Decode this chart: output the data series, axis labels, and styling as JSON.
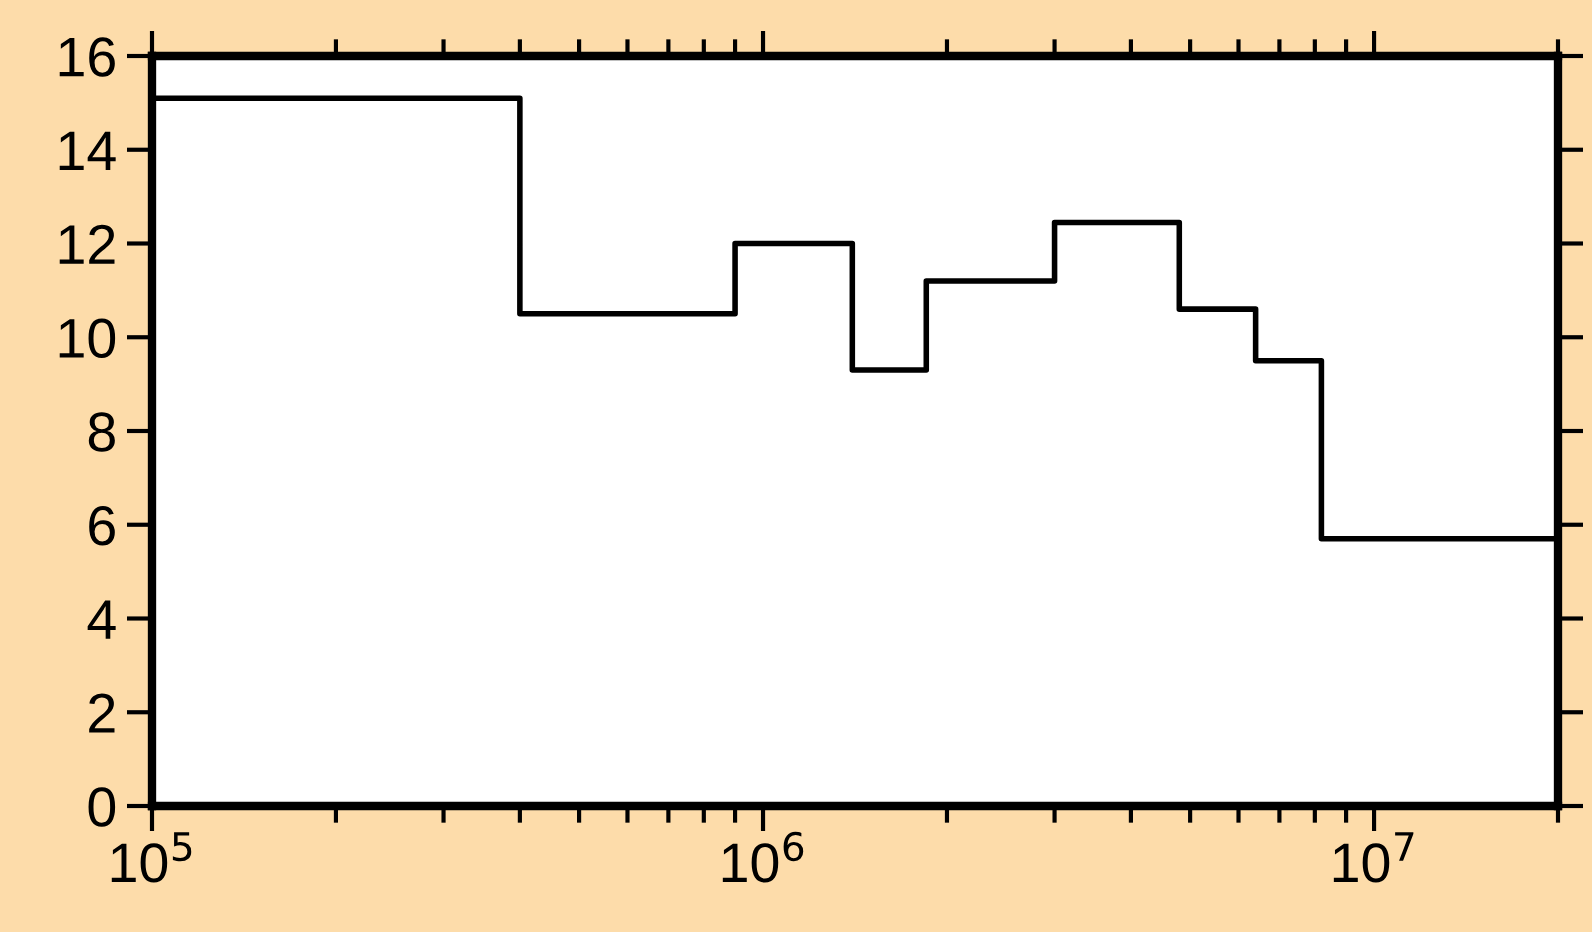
{
  "chart_data": {
    "type": "step",
    "log": "x",
    "x": [
      100000,
      400000,
      900000,
      1400000,
      1850000,
      3000000,
      4800000,
      6400000,
      8200000,
      20000000
    ],
    "values": [
      15.1,
      10.5,
      12.0,
      9.3,
      11.2,
      12.45,
      10.6,
      9.5,
      5.7,
      5.7
    ],
    "color": "#000000",
    "line_style": "solid",
    "marker": "none",
    "grid": false,
    "legend": false,
    "xlim": [
      100000,
      20000000
    ],
    "ylim": [
      0,
      16
    ],
    "xticks": [
      {
        "value": 100000,
        "label": "10$^{5}$"
      },
      {
        "value": 1000000,
        "label": "10$^{6}$"
      },
      {
        "value": 10000000,
        "label": "10$^{7}$"
      }
    ],
    "yticks": [
      0,
      2,
      4,
      6,
      8,
      10,
      12,
      14,
      16
    ]
  }
}
